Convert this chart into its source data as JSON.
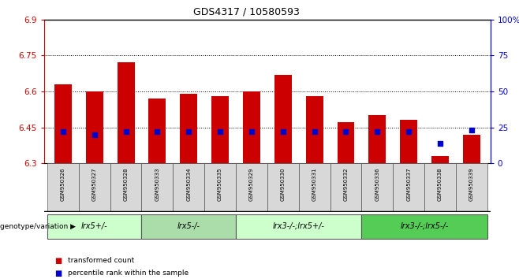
{
  "title": "GDS4317 / 10580593",
  "samples": [
    "GSM950326",
    "GSM950327",
    "GSM950328",
    "GSM950333",
    "GSM950334",
    "GSM950335",
    "GSM950329",
    "GSM950330",
    "GSM950331",
    "GSM950332",
    "GSM950336",
    "GSM950337",
    "GSM950338",
    "GSM950339"
  ],
  "transformed_counts": [
    6.63,
    6.6,
    6.72,
    6.57,
    6.59,
    6.58,
    6.6,
    6.67,
    6.58,
    6.47,
    6.5,
    6.48,
    6.33,
    6.42
  ],
  "percentile_ranks": [
    22,
    20,
    22,
    22,
    22,
    22,
    22,
    22,
    22,
    22,
    22,
    22,
    14,
    23
  ],
  "bar_color": "#cc0000",
  "dot_color": "#0000cc",
  "ylim_left": [
    6.3,
    6.9
  ],
  "ylim_right": [
    0,
    100
  ],
  "yticks_left": [
    6.3,
    6.45,
    6.6,
    6.75,
    6.9
  ],
  "yticks_right": [
    0,
    25,
    50,
    75,
    100
  ],
  "hlines": [
    6.45,
    6.6,
    6.75
  ],
  "groups": [
    {
      "label": "lrx5+/-",
      "start": 0,
      "end": 3,
      "color": "#ccffcc"
    },
    {
      "label": "lrx5-/-",
      "start": 3,
      "end": 6,
      "color": "#aaddaa"
    },
    {
      "label": "lrx3-/-;lrx5+/-",
      "start": 6,
      "end": 10,
      "color": "#ccffcc"
    },
    {
      "label": "lrx3-/-;lrx5-/-",
      "start": 10,
      "end": 14,
      "color": "#55cc55"
    }
  ],
  "legend_bar_label": "transformed count",
  "legend_dot_label": "percentile rank within the sample",
  "genotype_label": "genotype/variation",
  "bar_width": 0.55,
  "base_value": 6.3,
  "axis_label_color_left": "#cc0000",
  "axis_label_color_right": "#0000cc",
  "sample_box_color": "#d8d8d8",
  "group_border_color": "#000000"
}
